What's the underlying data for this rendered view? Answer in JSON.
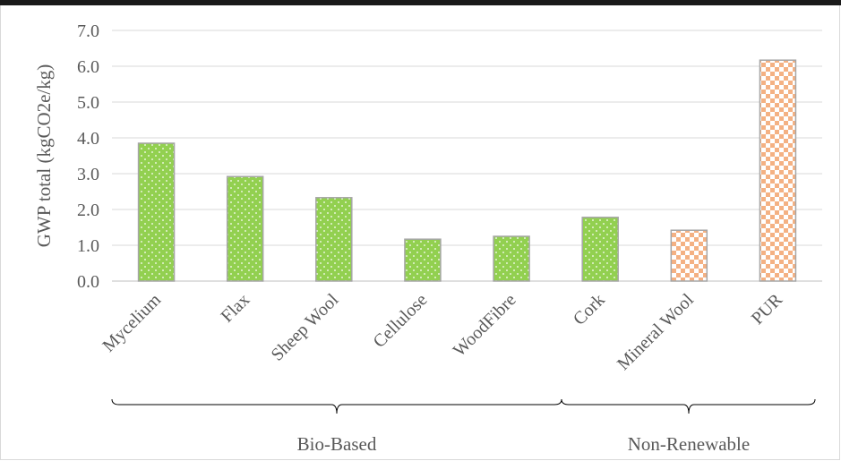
{
  "chart_data": {
    "type": "bar",
    "title": "",
    "ylabel": "GWP total (kgCO2e/kg)",
    "xlabel": "",
    "ylim": [
      0,
      7
    ],
    "yticks": [
      "0.0",
      "1.0",
      "2.0",
      "3.0",
      "4.0",
      "5.0",
      "6.0",
      "7.0"
    ],
    "grid": true,
    "categories": [
      "Mycelium",
      "Flax",
      "Sheep Wool",
      "Cellulose",
      "WoodFibre",
      "Cork",
      "Mineral Wool",
      "PUR"
    ],
    "values": [
      3.85,
      2.92,
      2.33,
      1.17,
      1.25,
      1.78,
      1.42,
      6.17
    ],
    "bar_styles": [
      "dotted-green",
      "dotted-green",
      "dotted-green",
      "dotted-green",
      "dotted-green",
      "dotted-green",
      "checker-orange",
      "checker-orange"
    ],
    "groups": [
      {
        "label": "Bio-Based",
        "from": 0,
        "to": 5
      },
      {
        "label": "Non-Renewable",
        "from": 6,
        "to": 7
      }
    ],
    "colors": {
      "green": "#92d050",
      "orange": "#f4b183",
      "grid": "#d9d9d9",
      "text": "#595959",
      "bracket": "#000000"
    }
  }
}
